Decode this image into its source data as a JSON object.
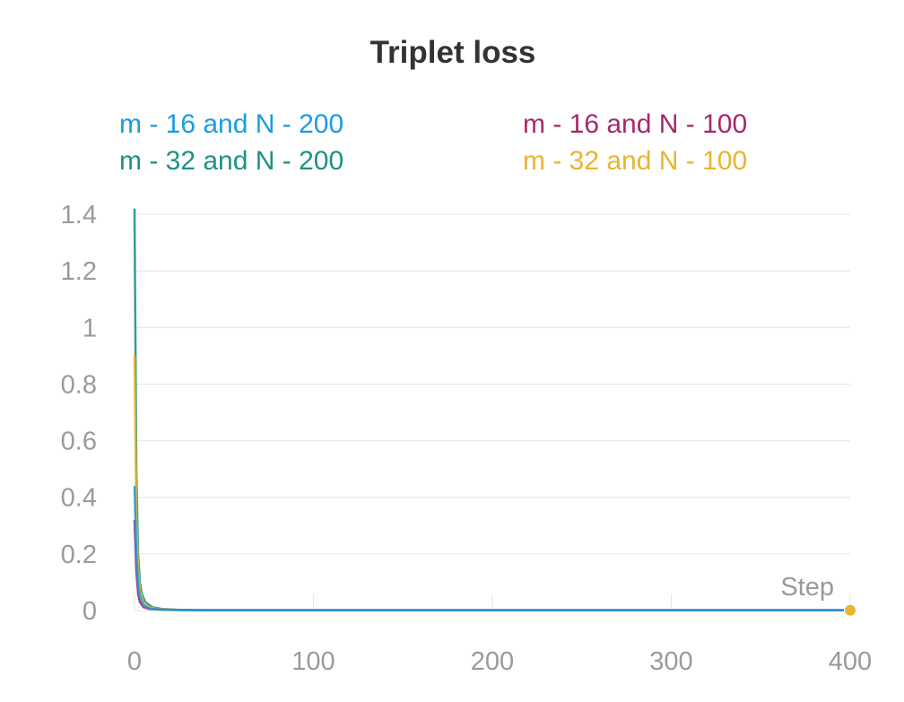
{
  "chart_data": {
    "type": "line",
    "title": "Triplet loss",
    "xlabel": "Step",
    "ylabel": "",
    "xlim": [
      0,
      400
    ],
    "ylim": [
      0,
      1.4
    ],
    "x_ticks": [
      0,
      100,
      200,
      300,
      400
    ],
    "y_ticks": [
      0,
      0.2,
      0.4,
      0.6,
      0.8,
      1,
      1.2,
      1.4
    ],
    "grid": true,
    "legend_position": "top",
    "series": [
      {
        "name": "m - 16 and N - 200",
        "color": "#1a9ce0",
        "points": [
          [
            0,
            0.44
          ],
          [
            1,
            0.2
          ],
          [
            2,
            0.09
          ],
          [
            3,
            0.05
          ],
          [
            5,
            0.02
          ],
          [
            8,
            0.008
          ],
          [
            12,
            0.004
          ],
          [
            20,
            0.002
          ],
          [
            40,
            0.001
          ],
          [
            100,
            0.001
          ],
          [
            200,
            0.001
          ],
          [
            300,
            0.001
          ],
          [
            400,
            0.001
          ]
        ]
      },
      {
        "name": "m - 16 and N - 100",
        "color": "#a8276b",
        "points": [
          [
            0,
            0.32
          ],
          [
            1,
            0.14
          ],
          [
            2,
            0.06
          ],
          [
            3,
            0.03
          ],
          [
            5,
            0.012
          ],
          [
            8,
            0.006
          ],
          [
            15,
            0.003
          ],
          [
            40,
            0.001
          ],
          [
            100,
            0.001
          ],
          [
            200,
            0.001
          ],
          [
            300,
            0.001
          ],
          [
            400,
            0.001
          ]
        ]
      },
      {
        "name": "m - 32 and N - 200",
        "color": "#1e9183",
        "points": [
          [
            0,
            1.42
          ],
          [
            1,
            0.5
          ],
          [
            2,
            0.2
          ],
          [
            3,
            0.1
          ],
          [
            4,
            0.06
          ],
          [
            6,
            0.03
          ],
          [
            10,
            0.012
          ],
          [
            15,
            0.006
          ],
          [
            25,
            0.002
          ],
          [
            50,
            0.001
          ],
          [
            100,
            0.001
          ],
          [
            200,
            0.001
          ],
          [
            300,
            0.001
          ],
          [
            400,
            0.001
          ]
        ]
      },
      {
        "name": "m - 32 and N - 100",
        "color": "#e8b52f",
        "points": [
          [
            0,
            0.9
          ],
          [
            1,
            0.35
          ],
          [
            2,
            0.14
          ],
          [
            3,
            0.07
          ],
          [
            5,
            0.03
          ],
          [
            8,
            0.012
          ],
          [
            14,
            0.005
          ],
          [
            25,
            0.002
          ],
          [
            50,
            0.001
          ],
          [
            100,
            0.001
          ],
          [
            200,
            0.001
          ],
          [
            300,
            0.001
          ],
          [
            400,
            0.001
          ]
        ]
      }
    ],
    "final_marker": {
      "x": 400,
      "y": 0.001,
      "color": "#e8b52f"
    }
  }
}
